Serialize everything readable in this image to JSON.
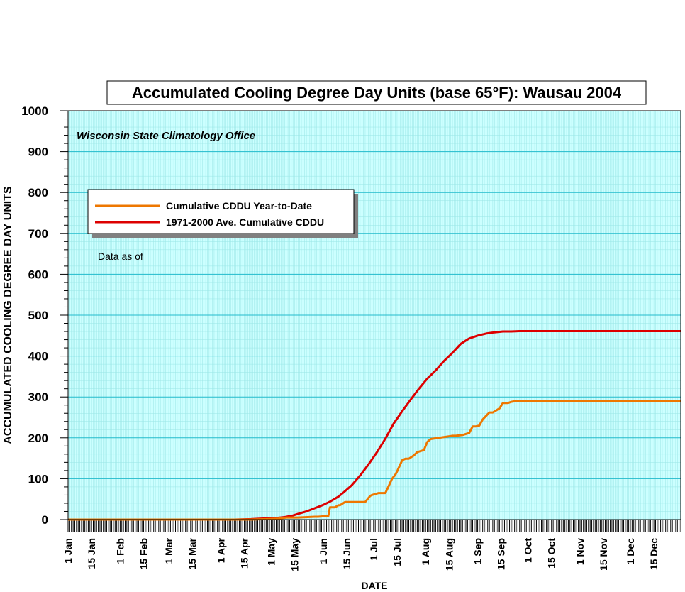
{
  "chart_data": {
    "type": "line",
    "title": "Accumulated Cooling Degree Day Units (base 65°F): Wausau 2004",
    "xlabel": "DATE",
    "ylabel": "ACCUMULATED COOLING DEGREE DAY UNITS",
    "ylim": [
      0,
      1000
    ],
    "xlim_days": [
      1,
      366
    ],
    "yticks": [
      0,
      100,
      200,
      300,
      400,
      500,
      600,
      700,
      800,
      900,
      1000
    ],
    "grid": true,
    "legend_position": "upper-left",
    "x_tick_labels": [
      {
        "label": "1 Jan",
        "day": 1
      },
      {
        "label": "15 Jan",
        "day": 15
      },
      {
        "label": "1 Feb",
        "day": 32
      },
      {
        "label": "15 Feb",
        "day": 46
      },
      {
        "label": "1 Mar",
        "day": 61
      },
      {
        "label": "15 Mar",
        "day": 75
      },
      {
        "label": "1 Apr",
        "day": 92
      },
      {
        "label": "15 Apr",
        "day": 106
      },
      {
        "label": "1 May",
        "day": 122
      },
      {
        "label": "15 May",
        "day": 136
      },
      {
        "label": "1 Jun",
        "day": 153
      },
      {
        "label": "15 Jun",
        "day": 167
      },
      {
        "label": "1 Jul",
        "day": 183
      },
      {
        "label": "15 Jul",
        "day": 197
      },
      {
        "label": "1 Aug",
        "day": 214
      },
      {
        "label": "15 Aug",
        "day": 228
      },
      {
        "label": "1 Sep",
        "day": 245
      },
      {
        "label": "15 Sep",
        "day": 259
      },
      {
        "label": "1 Oct",
        "day": 275
      },
      {
        "label": "15 Oct",
        "day": 289
      },
      {
        "label": "1 Nov",
        "day": 306
      },
      {
        "label": "15 Nov",
        "day": 320
      },
      {
        "label": "1 Dec",
        "day": 336
      },
      {
        "label": "15 Dec",
        "day": 350
      }
    ],
    "annotations": {
      "source": "Wisconsin State Climatology Office",
      "data_as_of": "Data as of"
    },
    "series": [
      {
        "name": "Cumulative CDDU Year-to-Date",
        "color": "#ee7700",
        "x": [
          1,
          110,
          126,
          131,
          136,
          138,
          148,
          150,
          153,
          156,
          157,
          160,
          162,
          163,
          166,
          168,
          178,
          181,
          182,
          186,
          188,
          190,
          192,
          194,
          196,
          197,
          200,
          202,
          204,
          207,
          209,
          213,
          215,
          217,
          230,
          232,
          236,
          240,
          242,
          244,
          246,
          248,
          252,
          254,
          258,
          260,
          262,
          263,
          265,
          268,
          272,
          290,
          366
        ],
        "y": [
          0,
          0,
          2,
          5,
          5,
          5,
          7,
          7,
          8,
          8,
          30,
          30,
          35,
          35,
          43,
          43,
          43,
          58,
          60,
          65,
          65,
          65,
          82,
          100,
          110,
          118,
          145,
          149,
          149,
          157,
          165,
          170,
          190,
          197,
          205,
          205,
          207,
          212,
          228,
          228,
          230,
          245,
          262,
          262,
          272,
          285,
          285,
          285,
          288,
          290,
          290,
          290,
          290
        ]
      },
      {
        "name": "1971-2000 Ave. Cumulative CDDU",
        "color": "#dd0000",
        "x": [
          1,
          100,
          110,
          115,
          120,
          125,
          130,
          135,
          138,
          143,
          148,
          153,
          157,
          162,
          165,
          170,
          175,
          180,
          185,
          190,
          195,
          200,
          205,
          210,
          215,
          220,
          225,
          230,
          235,
          240,
          245,
          250,
          255,
          260,
          265,
          270,
          280,
          300,
          366
        ],
        "y": [
          0,
          0,
          1,
          2,
          3,
          4,
          6,
          10,
          14,
          20,
          28,
          36,
          44,
          56,
          66,
          84,
          108,
          135,
          165,
          198,
          235,
          265,
          293,
          320,
          345,
          365,
          388,
          408,
          430,
          443,
          450,
          455,
          458,
          460,
          460,
          461,
          461,
          461,
          461
        ]
      }
    ]
  }
}
